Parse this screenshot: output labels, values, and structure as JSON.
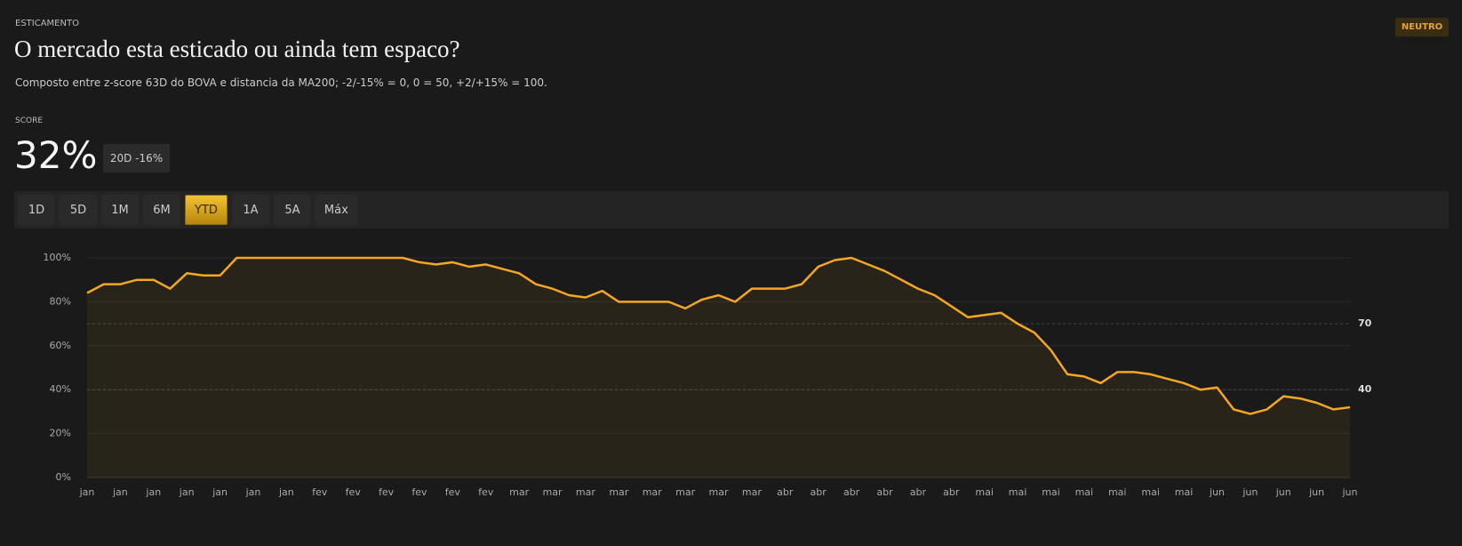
{
  "header": {
    "eyebrow": "ESTICAMENTO",
    "title": "O mercado esta esticado ou ainda tem espaco?",
    "subtitle": "Composto entre z-score 63D do BOVA e distancia da MA200; -2/-15% = 0, 0 = 50, +2/+15% = 100.",
    "badge": "NEUTRO"
  },
  "score": {
    "label": "SCORE",
    "value": "32%",
    "chip": "20D -16%"
  },
  "buttons": {
    "labels": [
      "1D",
      "5D",
      "1M",
      "6M",
      "YTD",
      "1A",
      "5A",
      "Máx"
    ],
    "active": "YTD"
  },
  "chart_data": {
    "type": "line",
    "color": "#f5a623",
    "categories": [
      "jan",
      null,
      "jan",
      null,
      "jan",
      null,
      "jan",
      null,
      "jan",
      null,
      "jan",
      null,
      "jan",
      null,
      "fev",
      null,
      "fev",
      null,
      "fev",
      null,
      "fev",
      null,
      "fev",
      null,
      "fev",
      null,
      "mar",
      null,
      "mar",
      null,
      "mar",
      null,
      "mar",
      null,
      "mar",
      null,
      "mar",
      null,
      "mar",
      null,
      "mar",
      null,
      "abr",
      null,
      "abr",
      null,
      "abr",
      null,
      "abr",
      null,
      "abr",
      null,
      "abr",
      null,
      "mai",
      null,
      "mai",
      null,
      "mai",
      null,
      "mai",
      null,
      "mai",
      null,
      "mai",
      null,
      "mai",
      null,
      "jun",
      null,
      "jun",
      null,
      "jun",
      null,
      "jun",
      null,
      "jun"
    ],
    "values": [
      84,
      88,
      88,
      90,
      90,
      86,
      93,
      92,
      92,
      100,
      100,
      100,
      100,
      100,
      100,
      100,
      100,
      100,
      100,
      100,
      98,
      97,
      98,
      96,
      97,
      95,
      93,
      88,
      86,
      83,
      82,
      85,
      80,
      80,
      80,
      80,
      77,
      81,
      83,
      80,
      86,
      86,
      86,
      88,
      96,
      99,
      100,
      97,
      94,
      90,
      86,
      83,
      78,
      73,
      74,
      75,
      70,
      66,
      58,
      47,
      46,
      43,
      48,
      48,
      47,
      45,
      43,
      40,
      41,
      31,
      29,
      31,
      37,
      36,
      34,
      31,
      32
    ],
    "ylim": [
      0,
      100
    ],
    "yticks": [
      {
        "value": 0,
        "label": "0%"
      },
      {
        "value": 20,
        "label": "20%"
      },
      {
        "value": 40,
        "label": "40%"
      },
      {
        "value": 60,
        "label": "60%"
      },
      {
        "value": 80,
        "label": "80%"
      },
      {
        "value": 100,
        "label": "100%"
      }
    ],
    "reference_lines": [
      70,
      40
    ],
    "grid": true
  }
}
